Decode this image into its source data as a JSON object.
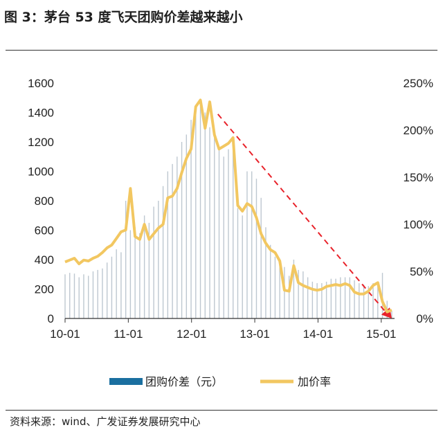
{
  "figure": {
    "title": "图 3：茅台 53 度飞天团购价差越来越小",
    "source": "资料来源：wind、广发证券发展研究中心"
  },
  "chart_data": {
    "type": "bar+line",
    "x_tick_labels": [
      "10-01",
      "11-01",
      "12-01",
      "13-01",
      "14-01",
      "15-01"
    ],
    "y_left": {
      "ticks": [
        "0",
        "200",
        "400",
        "600",
        "800",
        "1000",
        "1200",
        "1400",
        "1600"
      ],
      "range": [
        0,
        1600
      ]
    },
    "y_right": {
      "ticks": [
        "0%",
        "50%",
        "100%",
        "150%",
        "200%",
        "250%"
      ],
      "range": [
        0,
        250
      ]
    },
    "legend": {
      "position": "bottom",
      "bar_label": "团购价差（元）",
      "line_label": "加价率"
    },
    "colors": {
      "bar": "#1a6fa0",
      "line": "#f2c761",
      "trend": "#e8222a"
    },
    "x_start": "2010-01",
    "bar_values": [
      300,
      310,
      305,
      280,
      300,
      290,
      320,
      330,
      340,
      380,
      420,
      470,
      450,
      800,
      600,
      620,
      580,
      700,
      650,
      760,
      800,
      900,
      1000,
      1050,
      1100,
      1200,
      1250,
      1350,
      1400,
      1460,
      1400,
      1300,
      1280,
      1150,
      1100,
      1150,
      1200,
      750,
      700,
      1000,
      1000,
      950,
      820,
      620,
      500,
      420,
      400,
      350,
      290,
      400,
      330,
      320,
      280,
      250,
      240,
      240,
      250,
      270,
      270,
      280,
      280,
      280,
      260,
      240,
      230,
      220,
      240,
      250,
      310,
      120,
      50
    ],
    "rate_values": [
      60,
      62,
      64,
      58,
      62,
      61,
      64,
      66,
      70,
      75,
      78,
      85,
      92,
      94,
      138,
      87,
      84,
      100,
      84,
      90,
      96,
      100,
      128,
      130,
      138,
      155,
      170,
      180,
      225,
      232,
      202,
      230,
      195,
      180,
      183,
      186,
      192,
      120,
      114,
      122,
      119,
      107,
      90,
      80,
      73,
      70,
      61,
      30,
      29,
      56,
      38,
      35,
      33,
      31,
      30,
      31,
      34,
      35,
      36,
      35,
      37,
      35,
      28,
      26,
      26,
      29,
      35,
      38,
      18,
      7,
      9
    ],
    "trend_line": {
      "from": [
        "2012-06",
        217
      ],
      "to": [
        "2015-03",
        0
      ]
    }
  }
}
